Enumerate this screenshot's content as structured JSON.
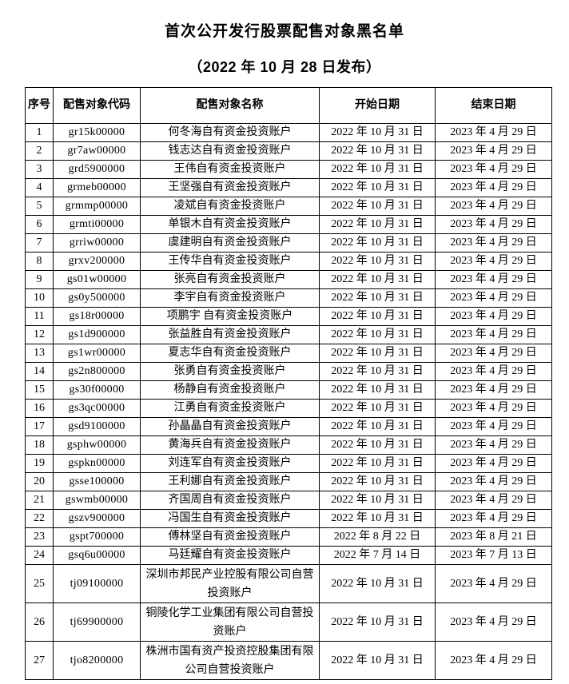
{
  "page": {
    "title": "首次公开发行股票配售对象黑名单",
    "subtitle": "（2022 年 10 月 28 日发布）"
  },
  "table": {
    "headers": [
      "序号",
      "配售对象代码",
      "配售对象名称",
      "开始日期",
      "结束日期"
    ],
    "rows": [
      {
        "no": "1",
        "code": "gr15k00000",
        "name": "何冬海自有资金投资账户",
        "start": "2022 年 10 月 31 日",
        "end": "2023 年 4 月 29 日"
      },
      {
        "no": "2",
        "code": "gr7aw00000",
        "name": "钱志达自有资金投资账户",
        "start": "2022 年 10 月 31 日",
        "end": "2023 年 4 月 29 日"
      },
      {
        "no": "3",
        "code": "grd5900000",
        "name": "王伟自有资金投资账户",
        "start": "2022 年 10 月 31 日",
        "end": "2023 年 4 月 29 日"
      },
      {
        "no": "4",
        "code": "grmeb00000",
        "name": "王坚强自有资金投资账户",
        "start": "2022 年 10 月 31 日",
        "end": "2023 年 4 月 29 日"
      },
      {
        "no": "5",
        "code": "grmmp00000",
        "name": "凌斌自有资金投资账户",
        "start": "2022 年 10 月 31 日",
        "end": "2023 年 4 月 29 日"
      },
      {
        "no": "6",
        "code": "grmti00000",
        "name": "单银木自有资金投资账户",
        "start": "2022 年 10 月 31 日",
        "end": "2023 年 4 月 29 日"
      },
      {
        "no": "7",
        "code": "grriw00000",
        "name": "虞建明自有资金投资账户",
        "start": "2022 年 10 月 31 日",
        "end": "2023 年 4 月 29 日"
      },
      {
        "no": "8",
        "code": "grxv200000",
        "name": "王传华自有资金投资账户",
        "start": "2022 年 10 月 31 日",
        "end": "2023 年 4 月 29 日"
      },
      {
        "no": "9",
        "code": "gs01w00000",
        "name": "张亮自有资金投资账户",
        "start": "2022 年 10 月 31 日",
        "end": "2023 年 4 月 29 日"
      },
      {
        "no": "10",
        "code": "gs0y500000",
        "name": "李宇自有资金投资账户",
        "start": "2022 年 10 月 31 日",
        "end": "2023 年 4 月 29 日"
      },
      {
        "no": "11",
        "code": "gs18r00000",
        "name": "项鹏宇 自有资金投资账户",
        "start": "2022 年 10 月 31 日",
        "end": "2023 年 4 月 29 日"
      },
      {
        "no": "12",
        "code": "gs1d900000",
        "name": "张益胜自有资金投资账户",
        "start": "2022 年 10 月 31 日",
        "end": "2023 年 4 月 29 日"
      },
      {
        "no": "13",
        "code": "gs1wr00000",
        "name": "夏志华自有资金投资账户",
        "start": "2022 年 10 月 31 日",
        "end": "2023 年 4 月 29 日"
      },
      {
        "no": "14",
        "code": "gs2n800000",
        "name": "张勇自有资金投资账户",
        "start": "2022 年 10 月 31 日",
        "end": "2023 年 4 月 29 日"
      },
      {
        "no": "15",
        "code": "gs30f00000",
        "name": "杨静自有资金投资账户",
        "start": "2022 年 10 月 31 日",
        "end": "2023 年 4 月 29 日"
      },
      {
        "no": "16",
        "code": "gs3qc00000",
        "name": "江勇自有资金投资账户",
        "start": "2022 年 10 月 31 日",
        "end": "2023 年 4 月 29 日"
      },
      {
        "no": "17",
        "code": "gsd9100000",
        "name": "孙晶晶自有资金投资账户",
        "start": "2022 年 10 月 31 日",
        "end": "2023 年 4 月 29 日"
      },
      {
        "no": "18",
        "code": "gsphw00000",
        "name": "黄海兵自有资金投资账户",
        "start": "2022 年 10 月 31 日",
        "end": "2023 年 4 月 29 日"
      },
      {
        "no": "19",
        "code": "gspkn00000",
        "name": "刘连军自有资金投资账户",
        "start": "2022 年 10 月 31 日",
        "end": "2023 年 4 月 29 日"
      },
      {
        "no": "20",
        "code": "gsse100000",
        "name": "王利娜自有资金投资账户",
        "start": "2022 年 10 月 31 日",
        "end": "2023 年 4 月 29 日"
      },
      {
        "no": "21",
        "code": "gswmb00000",
        "name": "齐国周自有资金投资账户",
        "start": "2022 年 10 月 31 日",
        "end": "2023 年 4 月 29 日"
      },
      {
        "no": "22",
        "code": "gszv900000",
        "name": "冯国生自有资金投资账户",
        "start": "2022 年 10 月 31 日",
        "end": "2023 年 4 月 29 日"
      },
      {
        "no": "23",
        "code": "gspt700000",
        "name": "傅林坚自有资金投资账户",
        "start": "2022 年 8 月 22 日",
        "end": "2023 年 8 月 21 日"
      },
      {
        "no": "24",
        "code": "gsq6u00000",
        "name": "马廷耀自有资金投资账户",
        "start": "2022 年 7 月 14 日",
        "end": "2023 年 7 月 13 日"
      },
      {
        "no": "25",
        "code": "tj09100000",
        "name": "深圳市邦民产业控股有限公司自营投资账户",
        "start": "2022 年 10 月 31 日",
        "end": "2023 年 4 月 29 日",
        "tall": true
      },
      {
        "no": "26",
        "code": "tj69900000",
        "name": "铜陵化学工业集团有限公司自营投资账户",
        "start": "2022 年 10 月 31 日",
        "end": "2023 年 4 月 29 日",
        "tall": true
      },
      {
        "no": "27",
        "code": "tjo8200000",
        "name": "株洲市国有资产投资控股集团有限公司自营投资账户",
        "start": "2022 年 10 月 31 日",
        "end": "2023 年 4 月 29 日",
        "tall": true
      }
    ]
  }
}
